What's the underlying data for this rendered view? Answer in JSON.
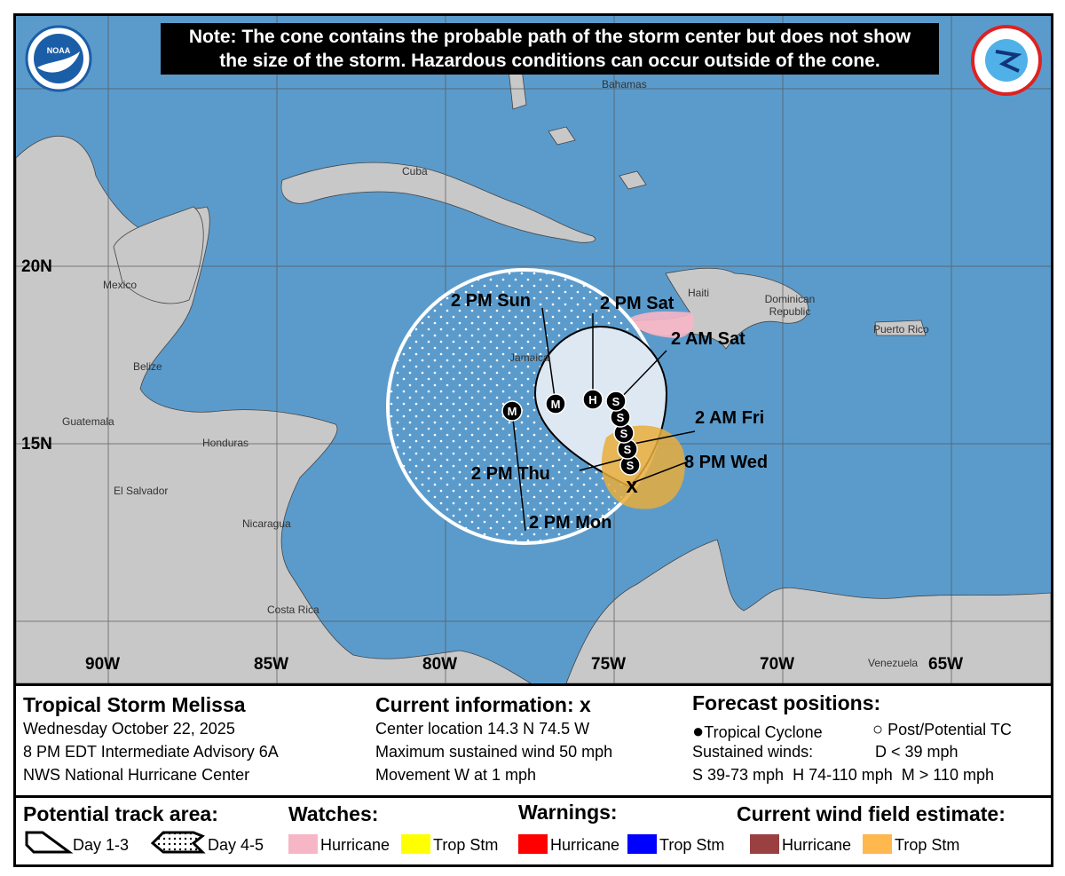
{
  "note": {
    "line1": "Note: The cone contains the probable path of the storm center but does not show",
    "line2": "the size of the storm. Hazardous conditions can occur outside of the cone."
  },
  "logos": {
    "left": "NOAA",
    "right": "NATIONAL WEATHER SERVICE"
  },
  "map": {
    "longitudes": [
      "90W",
      "85W",
      "80W",
      "75W",
      "70W",
      "65W"
    ],
    "latitudes": [
      "20N",
      "15N"
    ],
    "places": {
      "bahamas": "Bahamas",
      "cuba": "Cuba",
      "mexico": "Mexico",
      "belize": "Belize",
      "guatemala": "Guatemala",
      "honduras": "Honduras",
      "el_salvador": "El Salvador",
      "nicaragua": "Nicaragua",
      "costa_rica": "Costa Rica",
      "jamaica": "Jamaica",
      "haiti": "Haiti",
      "dominican_republic": "Dominican Republic",
      "puerto_rico": "Puerto Rico",
      "venezuela": "Venezuela"
    },
    "forecast_labels": {
      "sun": "2 PM Sun",
      "sat_pm": "2 PM Sat",
      "sat_am": "2 AM Sat",
      "fri_am": "2 AM Fri",
      "wed_pm": "8 PM Wed",
      "thu_pm": "2 PM Thu",
      "mon_pm": "2 PM Mon"
    },
    "points": [
      "S",
      "S",
      "S",
      "S",
      "S",
      "H",
      "M",
      "M"
    ],
    "colors": {
      "ocean": "#5b9bcc",
      "land": "#c8c8c8",
      "hurricane_watch": "#f7b6c6",
      "trop_storm_watch": "#ffff00",
      "trop_storm_wind": "#e8ad3c",
      "cone": "#dde8f2"
    }
  },
  "info": {
    "storm": {
      "title": "Tropical Storm Melissa",
      "date": "Wednesday October 22, 2025",
      "advisory": "8 PM EDT Intermediate Advisory 6A",
      "center": "NWS National Hurricane Center"
    },
    "current": {
      "title": "Current information: ",
      "marker": "x",
      "location": "Center location 14.3 N 74.5 W",
      "wind": "Maximum sustained wind 50 mph",
      "movement": "Movement W at 1 mph"
    },
    "forecast": {
      "title": "Forecast positions:",
      "tc": "Tropical Cyclone",
      "ptc": "Post/Potential TC",
      "winds_label": "Sustained winds:",
      "d": "D < 39 mph",
      "shm": "S 39-73 mph  H 74-110 mph  M > 110 mph"
    }
  },
  "legend": {
    "track_title": "Potential track area:",
    "day13": "Day 1-3",
    "day45": "Day 4-5",
    "watches_title": "Watches:",
    "warnings_title": "Warnings:",
    "wind_title": "Current wind field estimate:",
    "watch_hurricane": "Hurricane",
    "watch_ts": "Trop Stm",
    "warn_hurricane": "Hurricane",
    "warn_ts": "Trop Stm",
    "wind_hurricane": "Hurricane",
    "wind_ts": "Trop Stm",
    "colors": {
      "watch_hurricane": "#f7b6c6",
      "watch_ts": "#ffff00",
      "warn_hurricane": "#ff0000",
      "warn_ts": "#0000ff",
      "wind_hurricane": "#9b4040",
      "wind_ts": "#ffb84d"
    }
  }
}
